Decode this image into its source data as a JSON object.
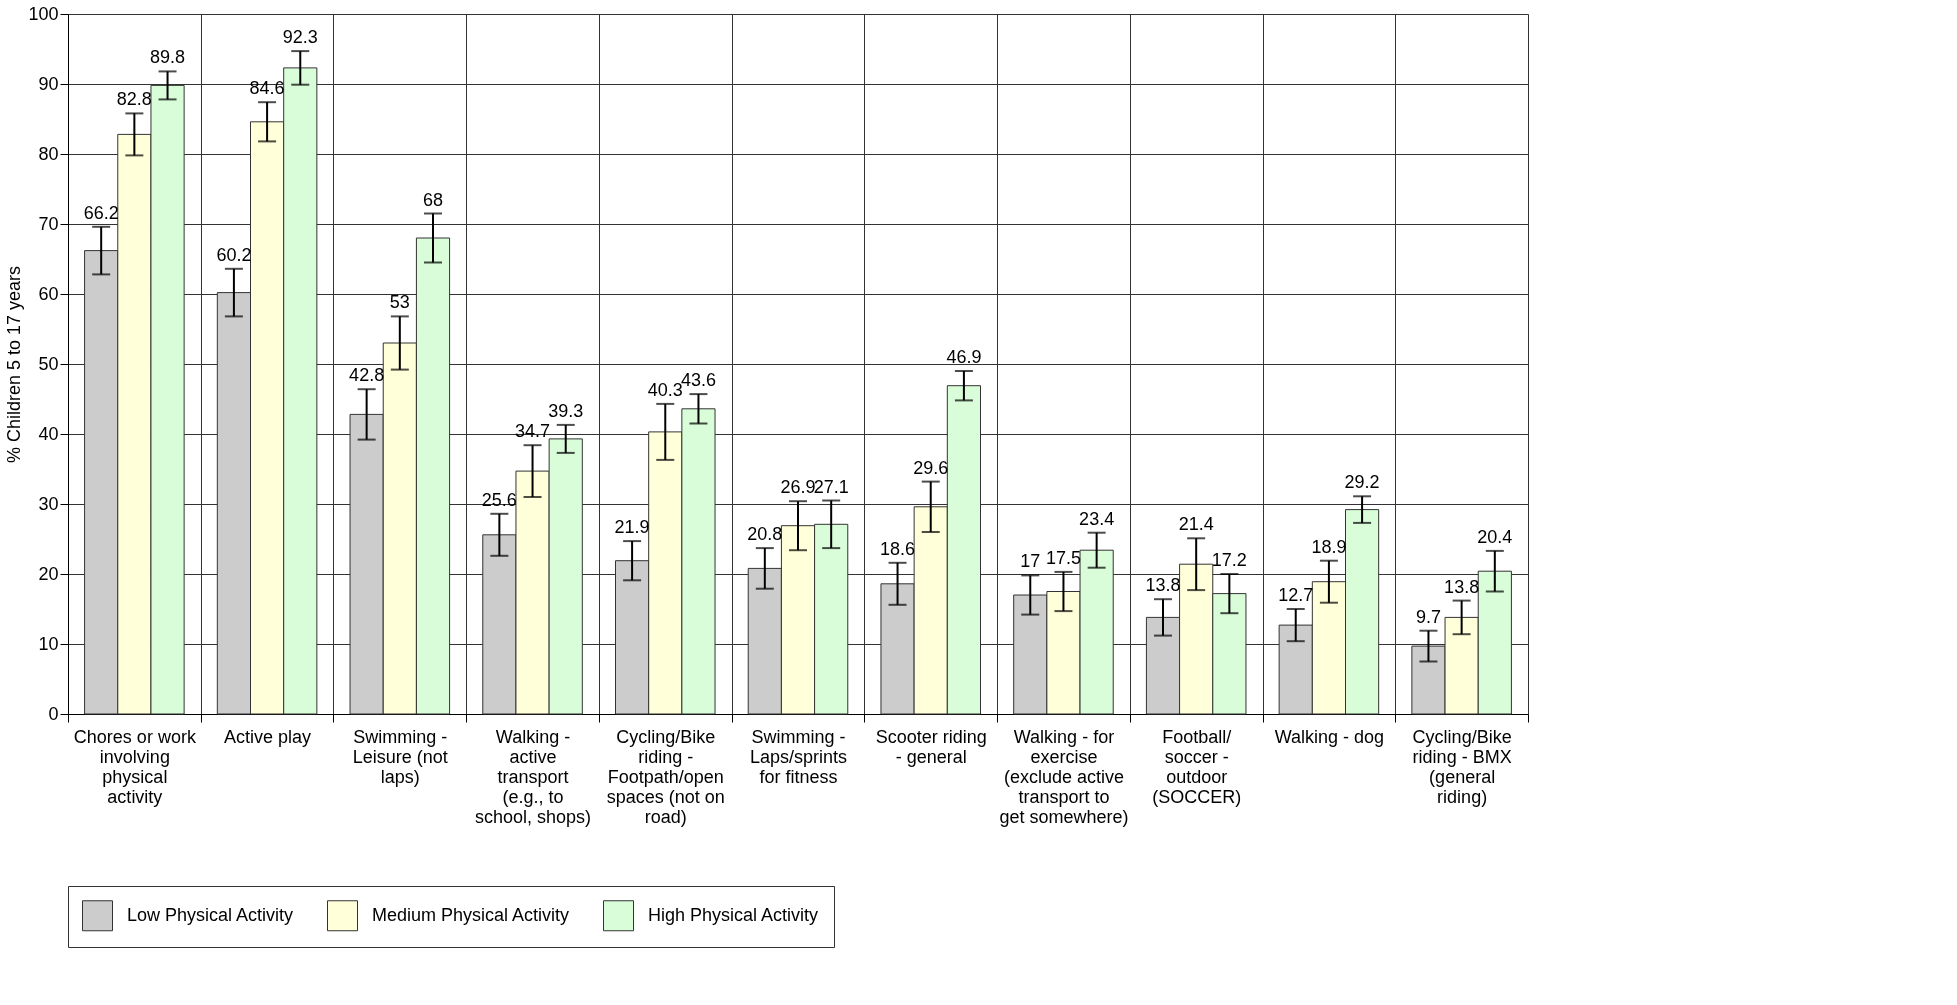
{
  "chart_data": {
    "type": "bar",
    "ylabel": "% Children 5 to 17 years",
    "categories": [
      "Chores or work involving physical activity",
      "Active play",
      "Swimming - Leisure (not laps)",
      "Walking - active transport (e.g., to school, shops)",
      "Cycling/Bike riding - Footpath/open spaces (not on road)",
      "Swimming - Laps/sprints for fitness",
      "Scooter riding - general",
      "Walking - for exercise (exclude active transport to get somewhere)",
      "Football/ soccer - outdoor (SOCCER)",
      "Walking - dog",
      "Cycling/Bike riding - BMX (general riding)"
    ],
    "series": [
      {
        "name": "Low Physical Activity",
        "color": "#cccccc",
        "values": [
          66.2,
          60.2,
          42.8,
          25.6,
          21.9,
          20.8,
          18.6,
          17,
          13.8,
          12.7,
          9.7
        ],
        "errors": [
          3.4,
          3.4,
          3.6,
          3.0,
          2.8,
          2.9,
          3.0,
          2.8,
          2.6,
          2.3,
          2.2
        ]
      },
      {
        "name": "Medium Physical Activity",
        "color": "#ffffd9",
        "values": [
          82.8,
          84.6,
          53,
          34.7,
          40.3,
          26.9,
          29.6,
          17.5,
          21.4,
          18.9,
          13.8
        ],
        "errors": [
          3.0,
          2.8,
          3.8,
          3.7,
          4.0,
          3.5,
          3.6,
          2.8,
          3.7,
          3.0,
          2.4
        ]
      },
      {
        "name": "High Physical Activity",
        "color": "#d9fdd9",
        "values": [
          89.8,
          92.3,
          68,
          39.3,
          43.6,
          27.1,
          46.9,
          23.4,
          17.2,
          29.2,
          20.4
        ],
        "errors": [
          2.0,
          2.4,
          3.5,
          2.0,
          2.1,
          3.4,
          2.1,
          2.5,
          2.8,
          1.9,
          2.9
        ]
      }
    ],
    "ylim": [
      0,
      100
    ],
    "yticks": [
      0,
      10,
      20,
      30,
      40,
      50,
      60,
      70,
      80,
      90,
      100
    ],
    "grid": true,
    "legend": "bottom",
    "data_labels": true
  }
}
